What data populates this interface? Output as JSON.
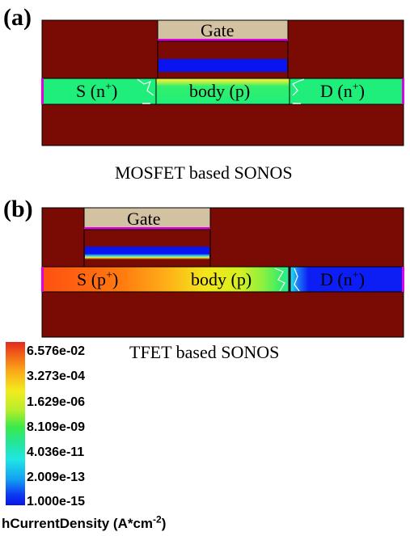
{
  "panel_a": {
    "label": "(a)",
    "gate": "Gate",
    "source": "S (n",
    "source_sup": "+",
    "body": "body (p)",
    "drain": "D (n",
    "drain_sup": "+",
    "caption": "MOSFET based SONOS"
  },
  "panel_b": {
    "label": "(b)",
    "gate": "Gate",
    "source": "S (p",
    "source_sup": "+",
    "body": "body (p)",
    "drain": "D (n",
    "drain_sup": "+",
    "caption": "TFET based SONOS"
  },
  "colorbar": {
    "ticks": [
      "6.576e-02",
      "3.273e-04",
      "1.629e-06",
      "8.109e-09",
      "4.036e-11",
      "2.009e-13",
      "1.000e-15"
    ],
    "title": "hCurrentDensity (A*cm",
    "title_sup": "-2",
    "title_end": ")"
  },
  "colors": {
    "substrate": "#7a0a04",
    "gate": "#d3c2a1",
    "gate_edge": "#e000e0",
    "charge_layer": "#0a14f0",
    "mos_channel": "#1fef7a",
    "tfet_source": "#ff5a10",
    "tfet_drain": "#0d1ef5",
    "outline": "#000000"
  }
}
